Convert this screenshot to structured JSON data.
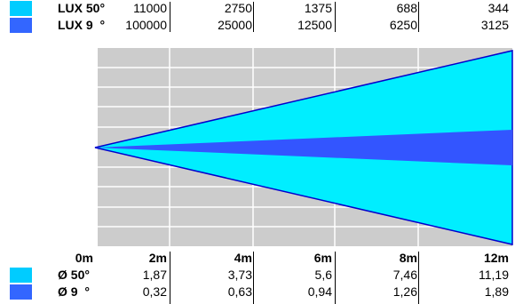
{
  "colors": {
    "beam50": "#00eeff",
    "beam9": "#3355ff",
    "background_panel": "#cccccc",
    "grid": "#ffffff",
    "outline": "#0000cc"
  },
  "legend_top": [
    {
      "label": "LUX 50°",
      "color": "#00ccff"
    },
    {
      "label": "LUX 9  °",
      "color": "#3366ff"
    }
  ],
  "legend_bottom": [
    {
      "label": "Ø 50°",
      "color": "#00ccff"
    },
    {
      "label": "Ø 9  °",
      "color": "#3366ff"
    }
  ],
  "lux_50": [
    "11000",
    "2750",
    "1375",
    "688",
    "344"
  ],
  "lux_9": [
    "100000",
    "25000",
    "12500",
    "6250",
    "3125"
  ],
  "distances": [
    "0m",
    "2m",
    "4m",
    "6m",
    "8m",
    "12m"
  ],
  "dia_50": [
    "1,87",
    "3,73",
    "5,6",
    "7,46",
    "11,19"
  ],
  "dia_9": [
    "0,32",
    "0,63",
    "0,94",
    "1,26",
    "1,89"
  ]
}
